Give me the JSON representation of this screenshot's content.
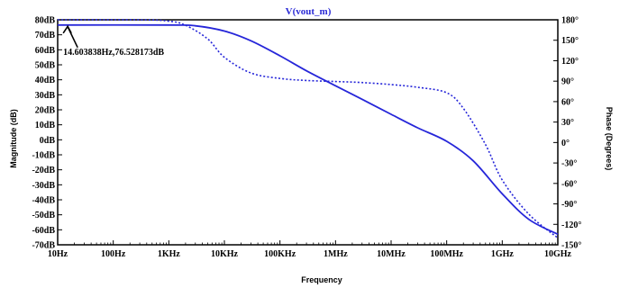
{
  "chart_data": {
    "type": "line",
    "title": "V(vout_m)",
    "xlabel": "Frequency",
    "ylabel_left": "Magnitude (dB)",
    "ylabel_right": "Phase (Degrees)",
    "x_scale": "log",
    "x_ticks": [
      {
        "value": 10,
        "label": "10Hz"
      },
      {
        "value": 100,
        "label": "100Hz"
      },
      {
        "value": 1000,
        "label": "1KHz"
      },
      {
        "value": 10000,
        "label": "10KHz"
      },
      {
        "value": 100000,
        "label": "100KHz"
      },
      {
        "value": 1000000,
        "label": "1MHz"
      },
      {
        "value": 10000000,
        "label": "10MHz"
      },
      {
        "value": 100000000,
        "label": "100MHz"
      },
      {
        "value": 1000000000,
        "label": "1GHz"
      },
      {
        "value": 10000000000,
        "label": "10GHz"
      }
    ],
    "xlim": [
      10,
      10000000000
    ],
    "ylim_left": [
      -70,
      80
    ],
    "ylim_right": [
      -150,
      180
    ],
    "y_left_ticks": [
      "80dB",
      "70dB",
      "60dB",
      "50dB",
      "40dB",
      "30dB",
      "20dB",
      "10dB",
      "0dB",
      "-10dB",
      "-20dB",
      "-30dB",
      "-40dB",
      "-50dB",
      "-60dB",
      "-70dB"
    ],
    "y_left_tick_values": [
      80,
      70,
      60,
      50,
      40,
      30,
      20,
      10,
      0,
      -10,
      -20,
      -30,
      -40,
      -50,
      -60,
      -70
    ],
    "y_right_ticks": [
      "180°",
      "150°",
      "120°",
      "90°",
      "60°",
      "30°",
      "0°",
      "-30°",
      "-60°",
      "-90°",
      "-120°",
      "-150°"
    ],
    "y_right_tick_values": [
      180,
      150,
      120,
      90,
      60,
      30,
      0,
      -30,
      -60,
      -90,
      -120,
      -150
    ],
    "grid": false,
    "series": [
      {
        "style": "solid",
        "color": "#2626d9",
        "axis": "left",
        "x": [
          10,
          1000,
          3000,
          10000,
          30000,
          100000,
          300000,
          1000000,
          3000000,
          10000000,
          30000000,
          100000000,
          300000000,
          1000000000,
          3000000000,
          10000000000
        ],
        "y": [
          76.5,
          76.5,
          76,
          72.5,
          66,
          56,
          46,
          36,
          27,
          17,
          8,
          -1,
          -14,
          -36,
          -53,
          -63
        ]
      },
      {
        "style": "dotted",
        "color": "#2626d9",
        "axis": "right",
        "x": [
          10,
          300,
          1000,
          2000,
          5000,
          10000,
          30000,
          100000,
          300000,
          1000000,
          3000000,
          10000000,
          30000000,
          100000000,
          200000000,
          500000000,
          1000000000,
          3000000000,
          10000000000
        ],
        "y": [
          180,
          180,
          178,
          172,
          152,
          125,
          102,
          94,
          91,
          89.5,
          88,
          85,
          81,
          73,
          50,
          -3,
          -55,
          -105,
          -140
        ]
      }
    ],
    "annotation": {
      "text": "14.603838Hz,76.528173dB",
      "x": 14.603838,
      "y": 76.528173
    }
  }
}
